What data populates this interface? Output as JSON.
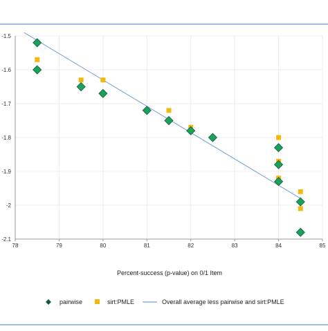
{
  "chart_data": {
    "type": "scatter",
    "title": "",
    "xlabel": "Percent-success (p-value) on 0/1 Item",
    "ylabel": "",
    "xlim": [
      78,
      85
    ],
    "ylim": [
      -2.1,
      -1.5
    ],
    "x_ticks": [
      78,
      79,
      80,
      81,
      82,
      83,
      84,
      85
    ],
    "x_tick_labels": [
      "78",
      "79",
      "80",
      "81",
      "82",
      "83",
      "84",
      "85"
    ],
    "y_ticks": [
      -1.5,
      -1.6,
      -1.7,
      -1.8,
      -1.9,
      -2.0,
      -2.1
    ],
    "y_tick_labels": [
      "-1.5",
      "-1.6",
      "-1.7",
      "-1.8",
      "-1.9",
      "-2",
      "-2.1"
    ],
    "grid": true,
    "legend_position": "bottom",
    "series": [
      {
        "name": "pairwise",
        "marker": "diamond",
        "color": "#1aa15a",
        "edge_color": "#0f5c37",
        "points": [
          {
            "x": 78.5,
            "y": -1.52
          },
          {
            "x": 78.5,
            "y": -1.6
          },
          {
            "x": 79.5,
            "y": -1.65
          },
          {
            "x": 80.0,
            "y": -1.67
          },
          {
            "x": 81.0,
            "y": -1.72
          },
          {
            "x": 81.5,
            "y": -1.75
          },
          {
            "x": 82.0,
            "y": -1.78
          },
          {
            "x": 82.5,
            "y": -1.8
          },
          {
            "x": 84.0,
            "y": -1.83
          },
          {
            "x": 84.0,
            "y": -1.88
          },
          {
            "x": 84.0,
            "y": -1.93
          },
          {
            "x": 84.5,
            "y": -1.99
          },
          {
            "x": 84.5,
            "y": -2.08
          }
        ]
      },
      {
        "name": "sirt:PMLE",
        "marker": "square",
        "color": "#f2b90c",
        "points": [
          {
            "x": 78.5,
            "y": -1.57
          },
          {
            "x": 79.5,
            "y": -1.63
          },
          {
            "x": 80.0,
            "y": -1.63
          },
          {
            "x": 81.0,
            "y": -1.72
          },
          {
            "x": 81.5,
            "y": -1.72
          },
          {
            "x": 82.0,
            "y": -1.77
          },
          {
            "x": 82.5,
            "y": -1.8
          },
          {
            "x": 84.0,
            "y": -1.8
          },
          {
            "x": 84.0,
            "y": -1.87
          },
          {
            "x": 84.0,
            "y": -1.92
          },
          {
            "x": 84.5,
            "y": -1.96
          },
          {
            "x": 84.5,
            "y": -2.01
          }
        ]
      },
      {
        "name": "Overall average less pairwise and sirt:PMLE",
        "marker": "line",
        "color": "#6f9fd8",
        "points": [
          {
            "x": 78.2,
            "y": -1.49
          },
          {
            "x": 84.5,
            "y": -1.98
          }
        ]
      }
    ]
  },
  "colors": {
    "frame_border": "#3d7fc6",
    "grid": "#ececec",
    "axis": "#9a9a9a"
  }
}
